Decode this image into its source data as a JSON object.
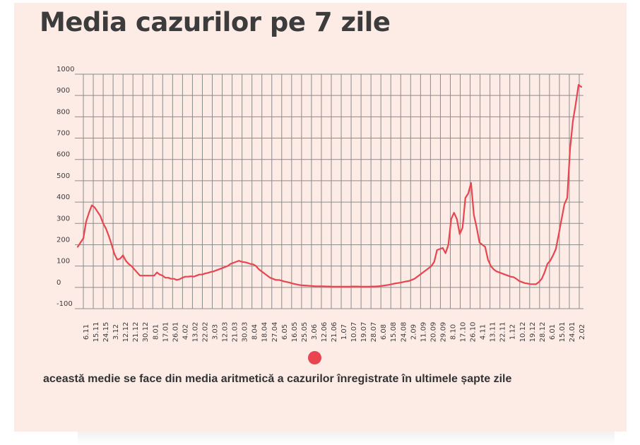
{
  "page": {
    "title": "Media cazurilor pe 7 zile",
    "note": "această medie se face din media aritmetică a cazurilor înregistrate în ultimele șapte zile"
  },
  "colors": {
    "background": "#fdebe6",
    "series": "#e84550",
    "grid": "#8c8c8c",
    "text": "#3c3c3c"
  },
  "chart_data": {
    "type": "line",
    "title": "Media cazurilor pe 7 zile",
    "xlabel": "",
    "ylabel": "",
    "ylim": [
      -100,
      1000
    ],
    "yticks": [
      -100,
      0,
      100,
      200,
      300,
      400,
      500,
      600,
      700,
      800,
      900,
      1000
    ],
    "x_ticks": [
      "6.11",
      "15.11",
      "24.15",
      "3.12",
      "12.12",
      "21.12",
      "30.12",
      "8.01",
      "17.01",
      "26.01",
      "4.02",
      "13.02",
      "22.02",
      "3.03",
      "12.03",
      "21.03",
      "30.03",
      "8.04",
      "18.04",
      "27.04",
      "6.05",
      "16.05",
      "25.05",
      "3.06",
      "12.06",
      "21.06",
      "1.07",
      "10.07",
      "19.07",
      "28.07",
      "6.08",
      "15.08",
      "24.08",
      "2.09",
      "11.09",
      "20.09",
      "29.09",
      "8.10",
      "17.10",
      "26.10",
      "4.11",
      "13.11",
      "22.11",
      "1.12",
      "10.12",
      "19.12",
      "28.12",
      "6.01",
      "15.01",
      "24.01",
      "2.02"
    ],
    "grid": true,
    "legend": "none",
    "series": [
      {
        "values": [
          190,
          210,
          230,
          310,
          350,
          385,
          375,
          355,
          335,
          300,
          275,
          240,
          200,
          155,
          130,
          135,
          150,
          125,
          110,
          100,
          85,
          70,
          55,
          55,
          55,
          55,
          55,
          55,
          70,
          60,
          55,
          45,
          45,
          40,
          40,
          35,
          38,
          45,
          50,
          50,
          52,
          50,
          55,
          60,
          60,
          65,
          68,
          72,
          75,
          80,
          85,
          90,
          95,
          100,
          110,
          115,
          120,
          125,
          120,
          118,
          115,
          110,
          108,
          100,
          85,
          75,
          65,
          55,
          45,
          40,
          35,
          35,
          32,
          28,
          25,
          22,
          18,
          15,
          12,
          10,
          9,
          8,
          7,
          6,
          5,
          5,
          5,
          5,
          4,
          4,
          3,
          3,
          3,
          3,
          3,
          3,
          3,
          4,
          4,
          4,
          3,
          3,
          3,
          3,
          4,
          4,
          5,
          6,
          8,
          10,
          12,
          15,
          18,
          20,
          22,
          25,
          28,
          30,
          35,
          40,
          50,
          60,
          70,
          80,
          90,
          100,
          120,
          175,
          180,
          185,
          160,
          200,
          320,
          350,
          320,
          250,
          280,
          420,
          440,
          490,
          340,
          280,
          210,
          200,
          190,
          130,
          100,
          85,
          75,
          70,
          65,
          60,
          55,
          50,
          48,
          40,
          30,
          25,
          20,
          18,
          15,
          15,
          15,
          25,
          40,
          70,
          110,
          125,
          150,
          180,
          250,
          320,
          390,
          420,
          650,
          780,
          860,
          950,
          940
        ]
      }
    ]
  }
}
